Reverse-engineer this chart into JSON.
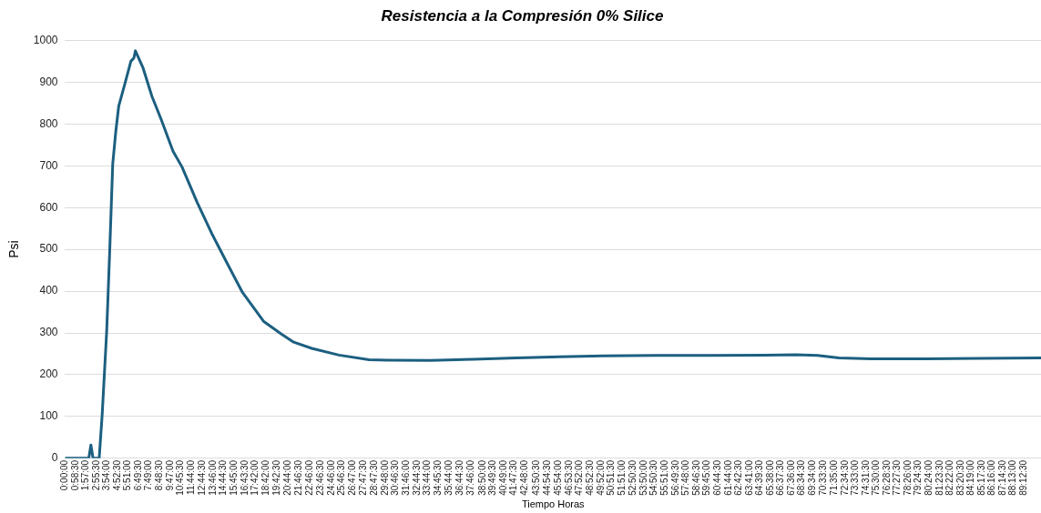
{
  "chart_data": {
    "type": "line",
    "title": "Resistencia a la Compresión 0% Silice",
    "xlabel": "Tiempo Horas",
    "ylabel": "Psi",
    "x": [
      0,
      2.2,
      2.4,
      2.6,
      3.17,
      3.45,
      3.87,
      4.15,
      4.43,
      4.71,
      4.99,
      5.56,
      6.12,
      6.4,
      6.54,
      7.24,
      8.08,
      8.92,
      10.04,
      10.88,
      12.29,
      13.7,
      15.09,
      16.5,
      18.46,
      20.15,
      21.27,
      22.95,
      25.48,
      28.28,
      30,
      34,
      38,
      42,
      46,
      50,
      55,
      60,
      65,
      68,
      70,
      72,
      75,
      80,
      85,
      90.8
    ],
    "series": [
      {
        "color": "#1c5f80",
        "values": [
          0,
          0,
          32,
          0,
          0,
          105,
          305,
          497,
          704,
          781,
          843,
          896,
          950,
          958,
          975,
          935,
          866,
          812,
          735,
          697,
          612,
          535,
          466,
          397,
          328,
          297,
          278,
          263,
          247,
          236,
          235,
          234,
          237,
          240,
          243,
          245,
          246,
          246,
          247,
          248,
          246,
          240,
          238,
          238,
          239,
          240
        ]
      }
    ],
    "xlim": [
      0,
      90.8
    ],
    "xticks": [
      {
        "value": 0,
        "label": "0:00:00"
      },
      {
        "value": 0.975,
        "label": "0:58:30"
      },
      {
        "value": 1.95,
        "label": "1:57:00"
      },
      {
        "value": 2.925,
        "label": "2:55:30"
      },
      {
        "value": 3.9,
        "label": "3:54:00"
      },
      {
        "value": 4.875,
        "label": "4:52:30"
      },
      {
        "value": 5.85,
        "label": "5:51:00"
      },
      {
        "value": 6.825,
        "label": "6:49:30"
      },
      {
        "value": 7.816667,
        "label": "7:49:00"
      },
      {
        "value": 8.808333,
        "label": "8:48:30"
      },
      {
        "value": 9.783333,
        "label": "9:47:00"
      },
      {
        "value": 10.758333,
        "label": "10:45:30"
      },
      {
        "value": 11.733333,
        "label": "11:44:00"
      },
      {
        "value": 12.741667,
        "label": "12:44:30"
      },
      {
        "value": 13.766667,
        "label": "13:46:00"
      },
      {
        "value": 14.741667,
        "label": "14:44:30"
      },
      {
        "value": 15.75,
        "label": "15:45:00"
      },
      {
        "value": 16.725,
        "label": "16:43:30"
      },
      {
        "value": 17.7,
        "label": "17:42:00"
      },
      {
        "value": 18.7,
        "label": "18:42:00"
      },
      {
        "value": 19.708333,
        "label": "19:42:30"
      },
      {
        "value": 20.733333,
        "label": "20:44:00"
      },
      {
        "value": 21.775,
        "label": "21:46:30"
      },
      {
        "value": 22.766667,
        "label": "22:46:00"
      },
      {
        "value": 23.775,
        "label": "23:46:30"
      },
      {
        "value": 24.766667,
        "label": "24:46:00"
      },
      {
        "value": 25.775,
        "label": "25:46:30"
      },
      {
        "value": 26.783333,
        "label": "26:47:00"
      },
      {
        "value": 27.791667,
        "label": "27:47:30"
      },
      {
        "value": 28.791667,
        "label": "28:47:30"
      },
      {
        "value": 29.8,
        "label": "29:48:00"
      },
      {
        "value": 30.775,
        "label": "30:46:30"
      },
      {
        "value": 31.766667,
        "label": "31:46:00"
      },
      {
        "value": 32.741667,
        "label": "32:44:30"
      },
      {
        "value": 33.733333,
        "label": "33:44:00"
      },
      {
        "value": 34.758333,
        "label": "34:45:30"
      },
      {
        "value": 35.733333,
        "label": "35:44:00"
      },
      {
        "value": 36.741667,
        "label": "36:44:30"
      },
      {
        "value": 37.766667,
        "label": "37:46:00"
      },
      {
        "value": 38.833333,
        "label": "38:50:00"
      },
      {
        "value": 39.825,
        "label": "39:49:30"
      },
      {
        "value": 40.816667,
        "label": "40:49:00"
      },
      {
        "value": 41.791667,
        "label": "41:47:30"
      },
      {
        "value": 42.8,
        "label": "42:48:00"
      },
      {
        "value": 43.841667,
        "label": "43:50:30"
      },
      {
        "value": 44.908333,
        "label": "44:54:30"
      },
      {
        "value": 45.9,
        "label": "45:54:00"
      },
      {
        "value": 46.891667,
        "label": "46:53:30"
      },
      {
        "value": 47.866667,
        "label": "47:52:00"
      },
      {
        "value": 48.875,
        "label": "48:52:30"
      },
      {
        "value": 49.866667,
        "label": "49:52:00"
      },
      {
        "value": 50.858333,
        "label": "50:51:30"
      },
      {
        "value": 51.85,
        "label": "51:51:00"
      },
      {
        "value": 52.841667,
        "label": "52:50:30"
      },
      {
        "value": 53.833333,
        "label": "53:50:00"
      },
      {
        "value": 54.841667,
        "label": "54:50:30"
      },
      {
        "value": 55.85,
        "label": "55:51:00"
      },
      {
        "value": 56.825,
        "label": "56:49:30"
      },
      {
        "value": 57.8,
        "label": "57:48:00"
      },
      {
        "value": 58.775,
        "label": "58:46:30"
      },
      {
        "value": 59.75,
        "label": "59:45:00"
      },
      {
        "value": 60.741667,
        "label": "60:44:30"
      },
      {
        "value": 61.733333,
        "label": "61:44:00"
      },
      {
        "value": 62.708333,
        "label": "62:42:30"
      },
      {
        "value": 63.683333,
        "label": "63:41:00"
      },
      {
        "value": 64.658333,
        "label": "64:39:30"
      },
      {
        "value": 65.633333,
        "label": "65:38:00"
      },
      {
        "value": 66.625,
        "label": "66:37:30"
      },
      {
        "value": 67.6,
        "label": "67:36:00"
      },
      {
        "value": 68.575,
        "label": "68:34:30"
      },
      {
        "value": 69.566667,
        "label": "69:34:00"
      },
      {
        "value": 70.558333,
        "label": "70:33:30"
      },
      {
        "value": 71.583333,
        "label": "71:35:00"
      },
      {
        "value": 72.575,
        "label": "72:34:30"
      },
      {
        "value": 73.55,
        "label": "73:33:00"
      },
      {
        "value": 74.525,
        "label": "74:31:30"
      },
      {
        "value": 75.5,
        "label": "75:30:00"
      },
      {
        "value": 76.475,
        "label": "76:28:30"
      },
      {
        "value": 77.458333,
        "label": "77:27:30"
      },
      {
        "value": 78.433333,
        "label": "78:26:00"
      },
      {
        "value": 79.408333,
        "label": "79:24:30"
      },
      {
        "value": 80.4,
        "label": "80:24:00"
      },
      {
        "value": 81.391667,
        "label": "81:23:30"
      },
      {
        "value": 82.366667,
        "label": "82:22:00"
      },
      {
        "value": 83.341667,
        "label": "83:20:30"
      },
      {
        "value": 84.316667,
        "label": "84:19:00"
      },
      {
        "value": 85.291667,
        "label": "85:17:30"
      },
      {
        "value": 86.266667,
        "label": "86:16:00"
      },
      {
        "value": 87.241667,
        "label": "87:14:30"
      },
      {
        "value": 88.216667,
        "label": "88:13:00"
      },
      {
        "value": 89.208333,
        "label": "89:12:30"
      }
    ],
    "ylim": [
      0,
      1000
    ],
    "yticks": [
      0,
      100,
      200,
      300,
      400,
      500,
      600,
      700,
      800,
      900,
      1000
    ],
    "grid": "y",
    "legend": false,
    "marker": "none",
    "line_style": "solid"
  }
}
